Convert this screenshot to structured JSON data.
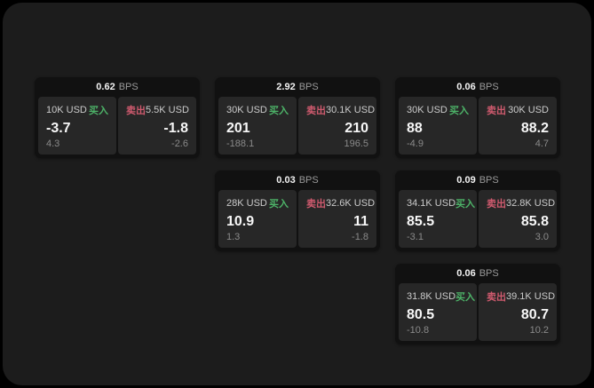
{
  "labels": {
    "bps_unit": "BPS",
    "buy": "买入",
    "sell": "卖出"
  },
  "colors": {
    "page_bg": "#000000",
    "panel_bg": "#1c1c1c",
    "card_bg": "#111111",
    "tile_bg": "#272727",
    "buy_green": "#4db368",
    "sell_red": "#cf5a6e",
    "value_text": "#f7f7f7",
    "label_text": "#cbcbcb",
    "muted_text": "#8a8a8a"
  },
  "cards": [
    {
      "bps": "0.62",
      "grid": {
        "col": 1,
        "row": 1
      },
      "buy": {
        "amount": "10K USD",
        "value": "-3.7",
        "delta": "4.3"
      },
      "sell": {
        "amount": "5.5K USD",
        "value": "-1.8",
        "delta": "-2.6"
      }
    },
    {
      "bps": "2.92",
      "grid": {
        "col": 2,
        "row": 1
      },
      "buy": {
        "amount": "30K USD",
        "value": "201",
        "delta": "-188.1"
      },
      "sell": {
        "amount": "30.1K USD",
        "value": "210",
        "delta": "196.5"
      }
    },
    {
      "bps": "0.06",
      "grid": {
        "col": 3,
        "row": 1
      },
      "buy": {
        "amount": "30K USD",
        "value": "88",
        "delta": "-4.9"
      },
      "sell": {
        "amount": "30K USD",
        "value": "88.2",
        "delta": "4.7"
      }
    },
    {
      "bps": "0.03",
      "grid": {
        "col": 2,
        "row": 2
      },
      "buy": {
        "amount": "28K USD",
        "value": "10.9",
        "delta": "1.3"
      },
      "sell": {
        "amount": "32.6K USD",
        "value": "11",
        "delta": "-1.8"
      }
    },
    {
      "bps": "0.09",
      "grid": {
        "col": 3,
        "row": 2
      },
      "buy": {
        "amount": "34.1K USD",
        "value": "85.5",
        "delta": "-3.1"
      },
      "sell": {
        "amount": "32.8K USD",
        "value": "85.8",
        "delta": "3.0"
      }
    },
    {
      "bps": "0.06",
      "grid": {
        "col": 3,
        "row": 3
      },
      "buy": {
        "amount": "31.8K USD",
        "value": "80.5",
        "delta": "-10.8"
      },
      "sell": {
        "amount": "39.1K USD",
        "value": "80.7",
        "delta": "10.2"
      }
    }
  ]
}
